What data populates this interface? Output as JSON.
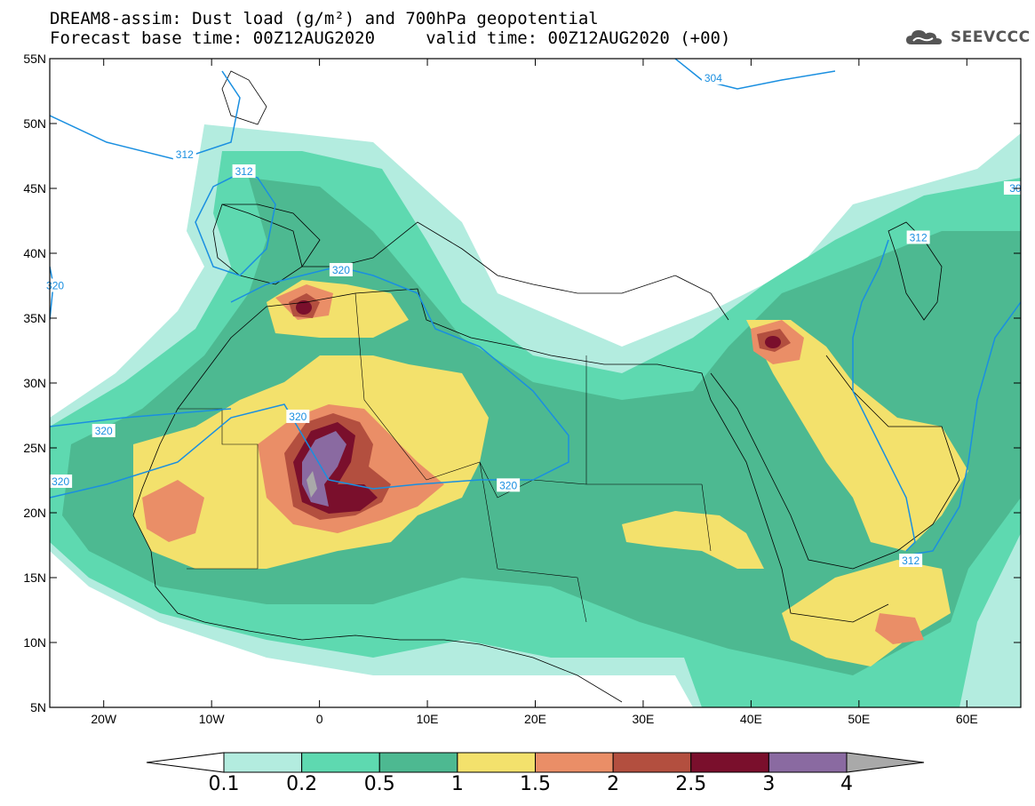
{
  "header": {
    "title_line1": "DREAM8-assim: Dust load (g/m²) and 700hPa geopotential",
    "title_line2": "Forecast base time: 00Z12AUG2020     valid time: 00Z12AUG2020 (+00)",
    "logo_text": "SEEVCCC",
    "logo_icon": "cloud-icon"
  },
  "map": {
    "lon_range": [
      -25,
      65
    ],
    "lat_range": [
      5,
      55
    ],
    "lon_labels": [
      {
        "lon": -20,
        "label": "20W"
      },
      {
        "lon": -10,
        "label": "10W"
      },
      {
        "lon": 0,
        "label": "0"
      },
      {
        "lon": 10,
        "label": "10E"
      },
      {
        "lon": 20,
        "label": "20E"
      },
      {
        "lon": 30,
        "label": "30E"
      },
      {
        "lon": 40,
        "label": "40E"
      },
      {
        "lon": 50,
        "label": "50E"
      },
      {
        "lon": 60,
        "label": "60E"
      }
    ],
    "lat_labels": [
      {
        "lat": 55,
        "label": "55N"
      },
      {
        "lat": 50,
        "label": "50N"
      },
      {
        "lat": 45,
        "label": "45N"
      },
      {
        "lat": 40,
        "label": "40N"
      },
      {
        "lat": 35,
        "label": "35N"
      },
      {
        "lat": 30,
        "label": "30N"
      },
      {
        "lat": 25,
        "label": "25N"
      },
      {
        "lat": 20,
        "label": "20N"
      },
      {
        "lat": 15,
        "label": "15N"
      },
      {
        "lat": 10,
        "label": "10N"
      },
      {
        "lat": 5,
        "label": "5N"
      }
    ],
    "contour_labels": [
      {
        "text": "304",
        "lon": 36.5,
        "lat": 53.5
      },
      {
        "text": "312",
        "lon": -12.5,
        "lat": 47.6
      },
      {
        "text": "312",
        "lon": -7,
        "lat": 46.3
      },
      {
        "text": "312",
        "lon": 55.5,
        "lat": 41.2
      },
      {
        "text": "312",
        "lon": 54.8,
        "lat": 16.3
      },
      {
        "text": "320",
        "lon": 2,
        "lat": 38.7
      },
      {
        "text": "320",
        "lon": -2,
        "lat": 27.4
      },
      {
        "text": "320",
        "lon": -20,
        "lat": 26.3
      },
      {
        "text": "320",
        "lon": -24,
        "lat": 22.4
      },
      {
        "text": "320",
        "lon": 17.5,
        "lat": 22.1
      },
      {
        "text": "320",
        "lon": -24.5,
        "lat": 37.5
      },
      {
        "text": "30",
        "lon": 64.5,
        "lat": 45
      }
    ]
  },
  "colorbar": {
    "tick_labels": [
      "0.1",
      "0.2",
      "0.5",
      "1",
      "1.5",
      "2",
      "2.5",
      "3",
      "4"
    ],
    "colors": [
      "#ffffff",
      "#b3ecdf",
      "#5ed9b0",
      "#4db991",
      "#f3e16c",
      "#ea8e67",
      "#b34f3f",
      "#7a0f2c",
      "#8a6aa1",
      "#a9a9a9"
    ]
  },
  "colors": {
    "ocean": "#ffffff",
    "land_outline": "#000000",
    "geopotential_contour": "#1a8fe0"
  }
}
